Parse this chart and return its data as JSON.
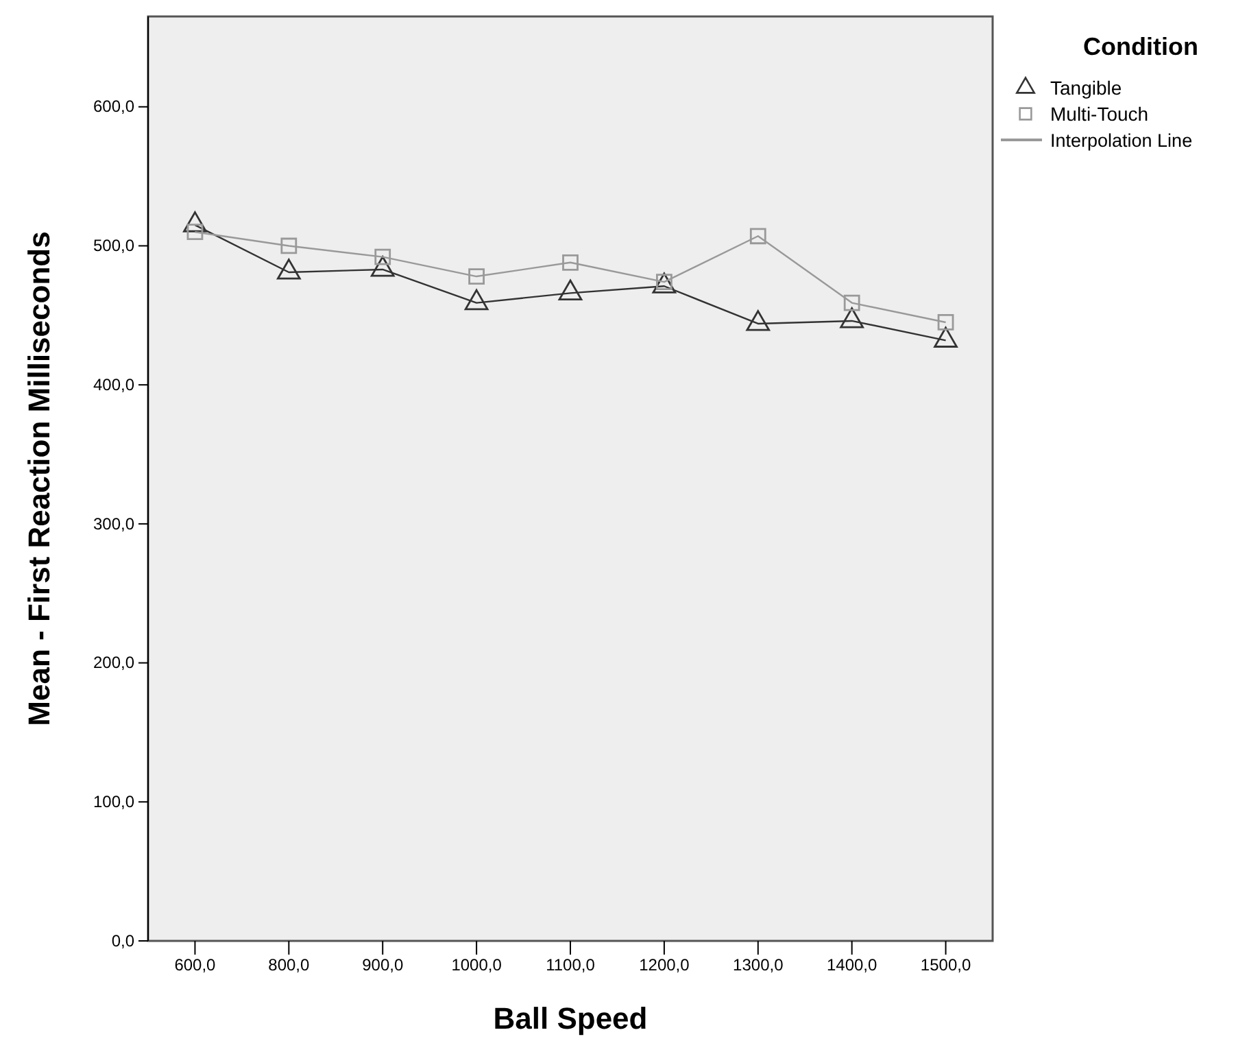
{
  "chart_data": {
    "type": "line",
    "xlabel": "Ball Speed",
    "ylabel": "Mean - First Reaction Milliseconds",
    "legend_title": "Condition",
    "legend": "right",
    "categories": [
      "600,0",
      "800,0",
      "900,0",
      "1000,0",
      "1100,0",
      "1200,0",
      "1300,0",
      "1400,0",
      "1500,0"
    ],
    "series": [
      {
        "name": "Tangible",
        "color": "#333333",
        "marker": "triangle",
        "values": [
          515,
          481,
          483,
          459,
          466,
          471,
          444,
          446,
          432
        ]
      },
      {
        "name": "Multi-Touch",
        "color": "#999999",
        "marker": "square",
        "values": [
          510,
          500,
          492,
          478,
          488,
          474,
          507,
          459,
          445
        ]
      }
    ],
    "annotations": [
      "Interpolation Line"
    ],
    "ylim": [
      0,
      665
    ],
    "yticks": [
      {
        "value": 0,
        "label": "0,0"
      },
      {
        "value": 100,
        "label": "100,0"
      },
      {
        "value": 200,
        "label": "200,0"
      },
      {
        "value": 300,
        "label": "300,0"
      },
      {
        "value": 400,
        "label": "400,0"
      },
      {
        "value": 500,
        "label": "500,0"
      },
      {
        "value": 600,
        "label": "600,0"
      }
    ],
    "grid": false
  }
}
